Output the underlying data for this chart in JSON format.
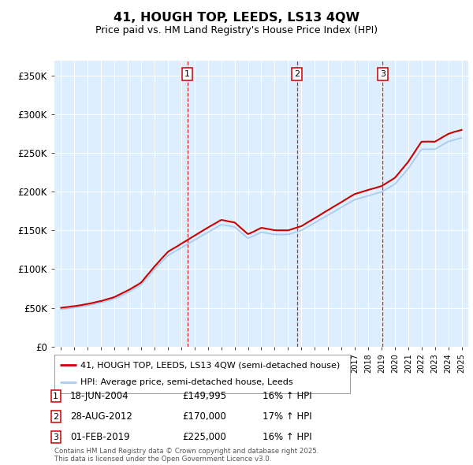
{
  "title": "41, HOUGH TOP, LEEDS, LS13 4QW",
  "subtitle": "Price paid vs. HM Land Registry's House Price Index (HPI)",
  "legend_line1": "41, HOUGH TOP, LEEDS, LS13 4QW (semi-detached house)",
  "legend_line2": "HPI: Average price, semi-detached house, Leeds",
  "footer": "Contains HM Land Registry data © Crown copyright and database right 2025.\nThis data is licensed under the Open Government Licence v3.0.",
  "price_paid_color": "#cc0000",
  "hpi_color": "#aaccee",
  "background_color": "#ddeeff",
  "annotations": [
    {
      "num": 1,
      "date": "18-JUN-2004",
      "price": "£149,995",
      "hpi_change": "16% ↑ HPI",
      "x_year": 2004.46
    },
    {
      "num": 2,
      "date": "28-AUG-2012",
      "price": "£170,000",
      "hpi_change": "17% ↑ HPI",
      "x_year": 2012.66
    },
    {
      "num": 3,
      "date": "01-FEB-2019",
      "price": "£225,000",
      "hpi_change": "16% ↑ HPI",
      "x_year": 2019.08
    }
  ],
  "ylim": [
    0,
    370000
  ],
  "xlim": [
    1994.5,
    2025.5
  ],
  "yticks": [
    0,
    50000,
    100000,
    150000,
    200000,
    250000,
    300000,
    350000
  ],
  "ytick_labels": [
    "£0",
    "£50K",
    "£100K",
    "£150K",
    "£200K",
    "£250K",
    "£300K",
    "£350K"
  ],
  "hpi_base": {
    "1995": 48000,
    "1996": 50000,
    "1997": 53000,
    "1998": 57000,
    "1999": 62000,
    "2000": 70000,
    "2001": 80000,
    "2002": 100000,
    "2003": 118000,
    "2004": 128000,
    "2005": 138000,
    "2006": 148000,
    "2007": 158000,
    "2008": 155000,
    "2009": 140000,
    "2010": 148000,
    "2011": 145000,
    "2012": 145000,
    "2013": 150000,
    "2014": 160000,
    "2015": 170000,
    "2016": 180000,
    "2017": 190000,
    "2018": 195000,
    "2019": 200000,
    "2020": 210000,
    "2021": 230000,
    "2022": 255000,
    "2023": 255000,
    "2024": 265000,
    "2025": 270000
  }
}
